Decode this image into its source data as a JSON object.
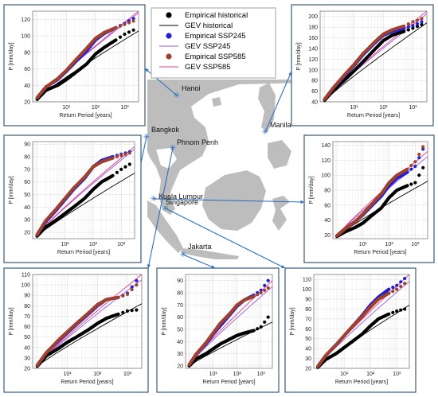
{
  "legend": {
    "entries": [
      {
        "label": "Empirical historical",
        "kind": "marker",
        "color": "#000000"
      },
      {
        "label": "GEV historical",
        "kind": "line",
        "color": "#000000"
      },
      {
        "label": "Empirical SSP245",
        "kind": "marker",
        "color": "#1f1fd6"
      },
      {
        "label": "GEV SSP245",
        "kind": "line",
        "color": "#9b59d9"
      },
      {
        "label": "Empirical SSP585",
        "kind": "marker",
        "color": "#a0412d"
      },
      {
        "label": "GEV SSP585",
        "kind": "line",
        "color": "#e8388b"
      }
    ]
  },
  "map": {
    "land_color": "#bdbdbd",
    "sea_color": "#ffffff",
    "marker_color": "#2e6fc0",
    "cities": [
      {
        "name": "Hanoi"
      },
      {
        "name": "Manila"
      },
      {
        "name": "Bangkok"
      },
      {
        "name": "Phnom Penh"
      },
      {
        "name": "Kuala Lumpur"
      },
      {
        "name": "Singapore"
      },
      {
        "name": "Jakarta"
      }
    ]
  },
  "chart_data": [
    {
      "type": "scatter",
      "panel": "top-left",
      "xlabel": "Return Period [years]",
      "ylabel": "P [mm/day]",
      "xscale": "log",
      "xlim": [
        0.7,
        3000
      ],
      "ylim": [
        20,
        130
      ],
      "xticks": [
        10,
        100,
        1000
      ],
      "xtick_labels": [
        "10¹",
        "10²",
        "10³"
      ],
      "yticks": [
        20,
        40,
        60,
        80,
        100,
        120
      ],
      "grid": true,
      "series": [
        {
          "name": "Empirical historical",
          "x": [
            1,
            2,
            5,
            10,
            20,
            50,
            100,
            200,
            500,
            1000,
            2000
          ],
          "y": [
            23,
            34,
            40,
            47,
            55,
            66,
            78,
            86,
            95,
            102,
            107
          ]
        },
        {
          "name": "Empirical SSP245",
          "x": [
            1,
            2,
            5,
            10,
            20,
            50,
            100,
            200,
            500,
            1000,
            2000
          ],
          "y": [
            25,
            38,
            47,
            57,
            68,
            82,
            95,
            103,
            110,
            115,
            121
          ]
        },
        {
          "name": "Empirical SSP585",
          "x": [
            1,
            2,
            5,
            10,
            20,
            50,
            100,
            200,
            500,
            1000,
            2000
          ],
          "y": [
            25,
            38,
            48,
            58,
            70,
            85,
            97,
            104,
            110,
            114,
            118
          ]
        },
        {
          "name": "GEV historical",
          "x": [
            1,
            3000
          ],
          "y": [
            24,
            106
          ]
        },
        {
          "name": "GEV SSP245",
          "x": [
            1,
            3000
          ],
          "y": [
            25,
            128
          ]
        },
        {
          "name": "GEV SSP585",
          "x": [
            1,
            3000
          ],
          "y": [
            25,
            130
          ]
        }
      ]
    },
    {
      "type": "scatter",
      "panel": "top-right",
      "xlabel": "Return Period [years]",
      "ylabel": "P [mm/day]",
      "xscale": "log",
      "xlim": [
        0.7,
        3000
      ],
      "ylim": [
        40,
        210
      ],
      "xticks": [
        10,
        100,
        1000
      ],
      "xtick_labels": [
        "10¹",
        "10²",
        "10³"
      ],
      "yticks": [
        40,
        60,
        80,
        100,
        120,
        140,
        160,
        180,
        200
      ],
      "grid": true,
      "series": [
        {
          "name": "Empirical historical",
          "x": [
            1,
            2,
            5,
            10,
            20,
            50,
            100,
            200,
            500,
            1000,
            2000
          ],
          "y": [
            43,
            62,
            82,
            98,
            115,
            138,
            155,
            165,
            172,
            178,
            185
          ]
        },
        {
          "name": "Empirical SSP245",
          "x": [
            1,
            2,
            5,
            10,
            20,
            50,
            100,
            200,
            500,
            1000,
            2000
          ],
          "y": [
            45,
            66,
            90,
            108,
            128,
            150,
            165,
            172,
            178,
            183,
            190
          ]
        },
        {
          "name": "Empirical SSP585",
          "x": [
            1,
            2,
            5,
            10,
            20,
            50,
            100,
            200,
            500,
            1000,
            2000
          ],
          "y": [
            45,
            67,
            92,
            110,
            130,
            152,
            167,
            175,
            182,
            190,
            196
          ]
        },
        {
          "name": "GEV historical",
          "x": [
            1,
            3000
          ],
          "y": [
            42,
            188
          ]
        },
        {
          "name": "GEV SSP245",
          "x": [
            1,
            3000
          ],
          "y": [
            44,
            205
          ]
        },
        {
          "name": "GEV SSP585",
          "x": [
            1,
            3000
          ],
          "y": [
            44,
            210
          ]
        }
      ]
    },
    {
      "type": "scatter",
      "panel": "middle-left",
      "xlabel": "Return Period [years]",
      "ylabel": "P [mm/day]",
      "xscale": "log",
      "xlim": [
        0.7,
        3000
      ],
      "ylim": [
        15,
        92
      ],
      "xticks": [
        10,
        100,
        1000
      ],
      "xtick_labels": [
        "10¹",
        "10²",
        "10³"
      ],
      "yticks": [
        20,
        30,
        40,
        50,
        60,
        70,
        80,
        90
      ],
      "grid": true,
      "series": [
        {
          "name": "Empirical historical",
          "x": [
            1,
            2,
            5,
            10,
            20,
            50,
            100,
            200,
            500,
            1000,
            2000
          ],
          "y": [
            17,
            24,
            30,
            35,
            40,
            47,
            54,
            60,
            65,
            70,
            74
          ]
        },
        {
          "name": "Empirical SSP245",
          "x": [
            1,
            2,
            5,
            10,
            20,
            50,
            100,
            200,
            500,
            1000,
            2000
          ],
          "y": [
            18,
            28,
            38,
            46,
            54,
            63,
            72,
            77,
            80,
            82,
            84
          ]
        },
        {
          "name": "Empirical SSP585",
          "x": [
            1,
            2,
            5,
            10,
            20,
            50,
            100,
            200,
            500,
            1000,
            2000
          ],
          "y": [
            18,
            29,
            39,
            47,
            55,
            64,
            72,
            76,
            79,
            81,
            83
          ]
        },
        {
          "name": "GEV historical",
          "x": [
            1,
            3000
          ],
          "y": [
            17,
            67
          ]
        },
        {
          "name": "GEV SSP245",
          "x": [
            1,
            3000
          ],
          "y": [
            18,
            86
          ]
        },
        {
          "name": "GEV SSP585",
          "x": [
            1,
            3000
          ],
          "y": [
            18,
            88
          ]
        }
      ]
    },
    {
      "type": "scatter",
      "panel": "middle-right",
      "xlabel": "Return Period [years]",
      "ylabel": "P [mm/day]",
      "xscale": "log",
      "xlim": [
        0.7,
        3000
      ],
      "ylim": [
        15,
        145
      ],
      "xticks": [
        10,
        100,
        1000
      ],
      "xtick_labels": [
        "10¹",
        "10²",
        "10³"
      ],
      "yticks": [
        20,
        40,
        60,
        80,
        100,
        120,
        140
      ],
      "grid": true,
      "series": [
        {
          "name": "Empirical historical",
          "x": [
            1,
            2,
            5,
            10,
            20,
            50,
            100,
            200,
            500,
            1000,
            2000
          ],
          "y": [
            18,
            24,
            30,
            36,
            45,
            56,
            70,
            80,
            86,
            90,
            110
          ]
        },
        {
          "name": "Empirical SSP245",
          "x": [
            1,
            2,
            5,
            10,
            20,
            50,
            100,
            200,
            500,
            1000,
            2000
          ],
          "y": [
            19,
            28,
            38,
            47,
            58,
            72,
            86,
            96,
            104,
            112,
            135
          ]
        },
        {
          "name": "Empirical SSP585",
          "x": [
            1,
            2,
            5,
            10,
            20,
            50,
            100,
            200,
            500,
            1000,
            2000
          ],
          "y": [
            19,
            28,
            38,
            48,
            60,
            75,
            90,
            100,
            108,
            118,
            138
          ]
        },
        {
          "name": "GEV historical",
          "x": [
            1,
            3000
          ],
          "y": [
            18,
            92
          ]
        },
        {
          "name": "GEV SSP245",
          "x": [
            1,
            3000
          ],
          "y": [
            19,
            125
          ]
        },
        {
          "name": "GEV SSP585",
          "x": [
            1,
            3000
          ],
          "y": [
            19,
            132
          ]
        }
      ]
    },
    {
      "type": "scatter",
      "panel": "bottom-left",
      "xlabel": "Return Period [years]",
      "ylabel": "P [mm/day]",
      "xscale": "log",
      "xlim": [
        0.7,
        3000
      ],
      "ylim": [
        20,
        110
      ],
      "xticks": [
        10,
        100,
        1000
      ],
      "xtick_labels": [
        "10¹",
        "10²",
        "10³"
      ],
      "yticks": [
        20,
        30,
        40,
        50,
        60,
        70,
        80,
        90,
        100,
        110
      ],
      "grid": true,
      "series": [
        {
          "name": "Empirical historical",
          "x": [
            1,
            2,
            5,
            10,
            20,
            50,
            100,
            200,
            500,
            1000,
            2000
          ],
          "y": [
            22,
            32,
            39,
            45,
            50,
            57,
            63,
            68,
            72,
            75,
            76
          ]
        },
        {
          "name": "Empirical SSP245",
          "x": [
            1,
            2,
            5,
            10,
            20,
            50,
            100,
            200,
            500,
            1000,
            2000
          ],
          "y": [
            23,
            35,
            46,
            54,
            62,
            72,
            80,
            86,
            88,
            92,
            104
          ]
        },
        {
          "name": "Empirical SSP585",
          "x": [
            1,
            2,
            5,
            10,
            20,
            50,
            100,
            200,
            500,
            1000,
            2000
          ],
          "y": [
            23,
            35,
            47,
            55,
            63,
            73,
            81,
            86,
            88,
            91,
            100
          ]
        },
        {
          "name": "GEV historical",
          "x": [
            1,
            3000
          ],
          "y": [
            22,
            82
          ]
        },
        {
          "name": "GEV SSP245",
          "x": [
            1,
            3000
          ],
          "y": [
            23,
            105
          ]
        },
        {
          "name": "GEV SSP585",
          "x": [
            1,
            3000
          ],
          "y": [
            23,
            110
          ]
        }
      ]
    },
    {
      "type": "scatter",
      "panel": "bottom-middle",
      "xlabel": "Return Period [years]",
      "ylabel": "P [mm/day]",
      "xscale": "log",
      "xlim": [
        0.7,
        3000
      ],
      "ylim": [
        18,
        95
      ],
      "xticks": [
        10,
        100,
        1000
      ],
      "xtick_labels": [
        "10¹",
        "10²",
        "10³"
      ],
      "yticks": [
        20,
        30,
        40,
        50,
        60,
        70,
        80,
        90
      ],
      "grid": true,
      "series": [
        {
          "name": "Empirical historical",
          "x": [
            1,
            2,
            5,
            10,
            20,
            50,
            100,
            200,
            500,
            1000,
            2000
          ],
          "y": [
            20,
            26,
            30,
            34,
            38,
            42,
            45,
            47,
            49,
            52,
            60
          ]
        },
        {
          "name": "Empirical SSP245",
          "x": [
            1,
            2,
            5,
            10,
            20,
            50,
            100,
            200,
            500,
            1000,
            2000
          ],
          "y": [
            21,
            30,
            38,
            46,
            53,
            62,
            69,
            74,
            78,
            82,
            90
          ]
        },
        {
          "name": "Empirical SSP585",
          "x": [
            1,
            2,
            5,
            10,
            20,
            50,
            100,
            200,
            500,
            1000,
            2000
          ],
          "y": [
            21,
            30,
            39,
            47,
            55,
            63,
            70,
            74,
            77,
            80,
            84
          ]
        },
        {
          "name": "GEV historical",
          "x": [
            1,
            3000
          ],
          "y": [
            20,
            56
          ]
        },
        {
          "name": "GEV SSP245",
          "x": [
            1,
            3000
          ],
          "y": [
            21,
            85
          ]
        },
        {
          "name": "GEV SSP585",
          "x": [
            1,
            3000
          ],
          "y": [
            21,
            90
          ]
        }
      ]
    },
    {
      "type": "scatter",
      "panel": "bottom-right",
      "xlabel": "Return Period [years]",
      "ylabel": "P [mm/day]",
      "xscale": "log",
      "xlim": [
        0.7,
        3000
      ],
      "ylim": [
        20,
        115
      ],
      "xticks": [
        10,
        100,
        1000
      ],
      "xtick_labels": [
        "10¹",
        "10²",
        "10³"
      ],
      "yticks": [
        20,
        30,
        40,
        50,
        60,
        70,
        80,
        90,
        100,
        110
      ],
      "grid": true,
      "series": [
        {
          "name": "Empirical historical",
          "x": [
            1,
            2,
            5,
            10,
            20,
            50,
            100,
            200,
            500,
            1000,
            2000
          ],
          "y": [
            21,
            29,
            35,
            41,
            47,
            55,
            63,
            70,
            75,
            78,
            80
          ]
        },
        {
          "name": "Empirical SSP245",
          "x": [
            1,
            2,
            5,
            10,
            20,
            50,
            100,
            200,
            500,
            1000,
            2000
          ],
          "y": [
            22,
            33,
            44,
            53,
            62,
            74,
            84,
            92,
            100,
            104,
            111
          ]
        },
        {
          "name": "Empirical SSP585",
          "x": [
            1,
            2,
            5,
            10,
            20,
            50,
            100,
            200,
            500,
            1000,
            2000
          ],
          "y": [
            22,
            33,
            44,
            53,
            62,
            73,
            82,
            90,
            96,
            100,
            106
          ]
        },
        {
          "name": "GEV historical",
          "x": [
            1,
            3000
          ],
          "y": [
            21,
            84
          ]
        },
        {
          "name": "GEV SSP245",
          "x": [
            1,
            3000
          ],
          "y": [
            22,
            108
          ]
        },
        {
          "name": "GEV SSP585",
          "x": [
            1,
            3000
          ],
          "y": [
            22,
            115
          ]
        }
      ]
    }
  ]
}
